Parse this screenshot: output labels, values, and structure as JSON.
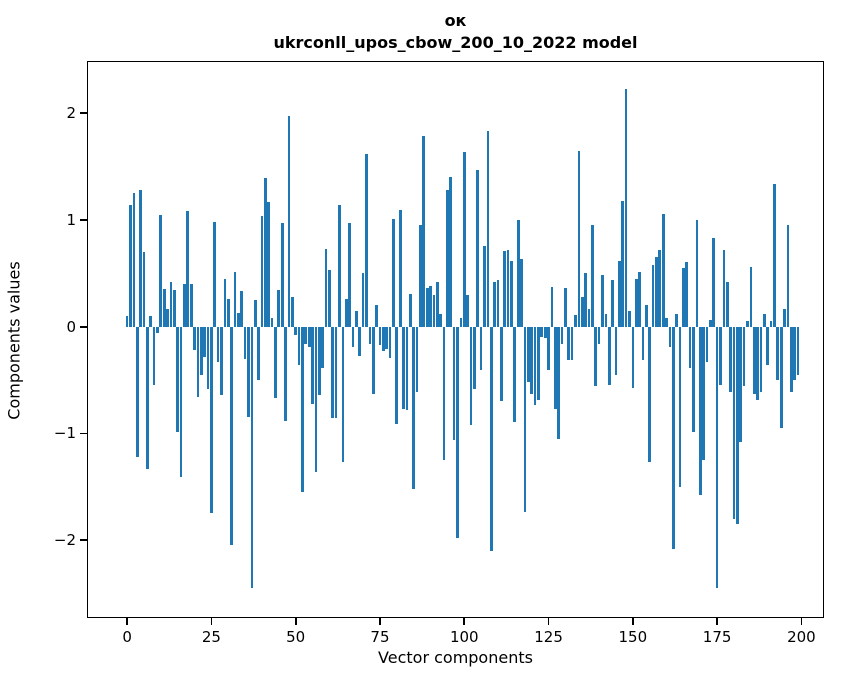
{
  "figure": {
    "title_line1": "ок",
    "title_line2": "ukrconll_upos_cbow_200_10_2022 model",
    "xlabel": "Vector components",
    "ylabel": "Components values",
    "background": "#ffffff",
    "spine_color": "#000000"
  },
  "chart_data": {
    "type": "bar",
    "title": "ок — ukrconll_upos_cbow_200_10_2022 model",
    "xlabel": "Vector components",
    "ylabel": "Components values",
    "legend": null,
    "grid": false,
    "bar_color": "#1f77b4",
    "bar_width": 0.8,
    "x_description": "vector component index 0..199",
    "xlim": [
      -11.6,
      206.4
    ],
    "ylim": [
      -2.72,
      2.48
    ],
    "x_ticks": [
      {
        "value": 0,
        "label": "0"
      },
      {
        "value": 25,
        "label": "25"
      },
      {
        "value": 50,
        "label": "50"
      },
      {
        "value": 75,
        "label": "75"
      },
      {
        "value": 100,
        "label": "100"
      },
      {
        "value": 125,
        "label": "125"
      },
      {
        "value": 150,
        "label": "150"
      },
      {
        "value": 175,
        "label": "175"
      },
      {
        "value": 200,
        "label": "200"
      }
    ],
    "y_ticks": [
      {
        "value": -2,
        "label": "−2"
      },
      {
        "value": -1,
        "label": "−1"
      },
      {
        "value": 0,
        "label": "0"
      },
      {
        "value": 1,
        "label": "1"
      },
      {
        "value": 2,
        "label": "2"
      }
    ],
    "values": [
      0.1,
      1.14,
      1.25,
      -1.22,
      1.28,
      0.7,
      -1.33,
      0.1,
      -0.55,
      -0.06,
      1.05,
      0.35,
      0.17,
      0.42,
      0.34,
      -0.99,
      -1.41,
      0.4,
      1.08,
      0.4,
      -0.22,
      -0.66,
      -0.45,
      -0.28,
      -0.58,
      -1.75,
      0.98,
      -0.33,
      -0.64,
      0.45,
      0.26,
      -2.05,
      0.51,
      0.13,
      0.33,
      -0.3,
      -0.85,
      -2.45,
      0.25,
      -0.5,
      1.04,
      1.39,
      1.17,
      0.08,
      -0.67,
      0.34,
      0.97,
      -0.88,
      1.97,
      0.28,
      -0.08,
      -0.36,
      -1.55,
      -0.16,
      -0.19,
      -0.72,
      -1.36,
      -0.64,
      -0.39,
      0.73,
      0.53,
      -0.86,
      -0.86,
      1.14,
      -1.27,
      0.26,
      0.97,
      -0.19,
      0.15,
      -0.27,
      0.5,
      1.62,
      -0.16,
      -0.63,
      0.2,
      -0.17,
      -0.23,
      -0.21,
      -0.29,
      1.01,
      -0.91,
      1.09,
      -0.77,
      -0.78,
      0.31,
      -1.52,
      -0.61,
      0.95,
      1.79,
      0.36,
      0.38,
      0.3,
      0.42,
      0.12,
      -1.25,
      1.28,
      1.4,
      -1.06,
      -1.98,
      0.08,
      1.64,
      0.3,
      -0.92,
      -0.58,
      1.47,
      -0.41,
      0.76,
      1.83,
      -2.1,
      0.42,
      0.44,
      -0.7,
      0.71,
      0.72,
      0.62,
      -0.89,
      1.0,
      0.63,
      -1.74,
      -0.52,
      -0.63,
      -0.73,
      -0.69,
      -0.1,
      -0.11,
      -0.41,
      0.37,
      -0.77,
      -1.05,
      -0.16,
      0.36,
      -0.31,
      -0.31,
      0.11,
      1.65,
      0.28,
      0.5,
      0.17,
      0.95,
      -0.56,
      -0.16,
      0.48,
      0.12,
      -0.55,
      0.44,
      -0.45,
      0.62,
      1.18,
      2.23,
      0.15,
      -0.57,
      0.45,
      0.51,
      -0.31,
      0.2,
      -1.27,
      0.58,
      0.65,
      0.72,
      1.06,
      0.08,
      -0.19,
      -2.08,
      0.12,
      -1.5,
      0.55,
      0.61,
      -0.39,
      -0.99,
      1.0,
      -1.58,
      -1.25,
      -0.33,
      0.06,
      0.83,
      -2.45,
      -0.55,
      0.72,
      0.42,
      -0.61,
      -1.8,
      -1.85,
      -1.08,
      -0.56,
      0.05,
      0.56,
      -0.63,
      -0.69,
      -0.61,
      0.12,
      -0.36,
      0.05,
      1.34,
      -0.5,
      -0.95,
      0.17,
      0.95,
      -0.61,
      -0.5,
      -0.45
    ]
  }
}
